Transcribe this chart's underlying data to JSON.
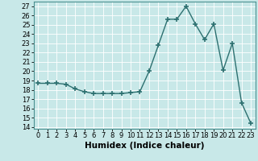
{
  "x": [
    0,
    1,
    2,
    3,
    4,
    5,
    6,
    7,
    8,
    9,
    10,
    11,
    12,
    13,
    14,
    15,
    16,
    17,
    18,
    19,
    20,
    21,
    22,
    23
  ],
  "y": [
    18.7,
    18.7,
    18.7,
    18.6,
    18.1,
    17.8,
    17.6,
    17.6,
    17.6,
    17.6,
    17.7,
    17.8,
    20.0,
    22.8,
    25.6,
    25.6,
    27.0,
    25.1,
    23.4,
    25.1,
    20.1,
    23.0,
    16.6,
    14.4
  ],
  "xlabel": "Humidex (Indice chaleur)",
  "xlim": [
    -0.5,
    23.5
  ],
  "ylim": [
    13.8,
    27.5
  ],
  "yticks": [
    14,
    15,
    16,
    17,
    18,
    19,
    20,
    21,
    22,
    23,
    24,
    25,
    26,
    27
  ],
  "xtick_labels": [
    "0",
    "1",
    "2",
    "3",
    "4",
    "5",
    "6",
    "7",
    "8",
    "9",
    "10",
    "11",
    "12",
    "13",
    "14",
    "15",
    "16",
    "17",
    "18",
    "19",
    "20",
    "21",
    "22",
    "23"
  ],
  "line_color": "#2d7070",
  "marker": "+",
  "bg_color": "#c8e8e8",
  "grid_color": "#b0d8d8",
  "label_fontsize": 7.5,
  "tick_fontsize": 6.0
}
